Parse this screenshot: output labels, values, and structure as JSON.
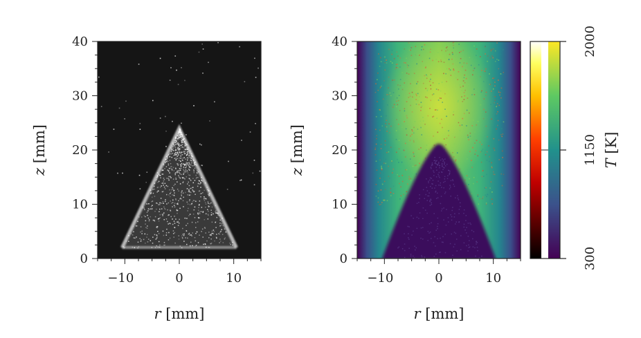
{
  "chart_data": [
    {
      "type": "heatmap",
      "colormap": "gray",
      "xlabel": {
        "var": "r",
        "unit": " [mm]"
      },
      "ylabel": {
        "var": "z",
        "unit": " [mm]"
      },
      "xlim": [
        -15,
        15
      ],
      "ylim": [
        0,
        40
      ],
      "xticks": [
        -10,
        0,
        10
      ],
      "xtick_labels": [
        "−10",
        "0",
        "10"
      ],
      "yticks": [
        0,
        10,
        20,
        30,
        40
      ],
      "ytick_labels": [
        "0",
        "10",
        "20",
        "30",
        "40"
      ],
      "flame": {
        "apex_z": 24,
        "base_r_left": -10.5,
        "base_r_right": 10.5,
        "base_z": 2
      }
    },
    {
      "type": "heatmap",
      "colormap": "viridis",
      "xlabel": {
        "var": "r",
        "unit": " [mm]"
      },
      "ylabel": {
        "var": "z",
        "unit": " [mm]"
      },
      "xlim": [
        -15,
        15
      ],
      "ylim": [
        0,
        40
      ],
      "xticks": [
        -10,
        0,
        10
      ],
      "xtick_labels": [
        "−10",
        "0",
        "10"
      ],
      "yticks": [
        0,
        10,
        20,
        30,
        40
      ],
      "ytick_labels": [
        "0",
        "10",
        "20",
        "30",
        "40"
      ],
      "flame": {
        "apex_z": 21,
        "base_r_left": -10,
        "base_r_right": 10,
        "base_z": 0
      },
      "colorbar": {
        "label": {
          "var": "T",
          "unit": " [K]"
        },
        "ticks": [
          300,
          1150,
          2000
        ],
        "tick_labels": [
          "300",
          "1150",
          "2000"
        ],
        "range": [
          300,
          2000
        ],
        "colormaps": [
          "hot",
          "viridis"
        ]
      }
    }
  ],
  "colors": {
    "viridis_dark": "#440154",
    "viridis_mid": "#21918c",
    "viridis_light": "#fde725",
    "gray_dark": "#151515",
    "hot_dark": "#000000",
    "hot_light": "#ffffff"
  }
}
